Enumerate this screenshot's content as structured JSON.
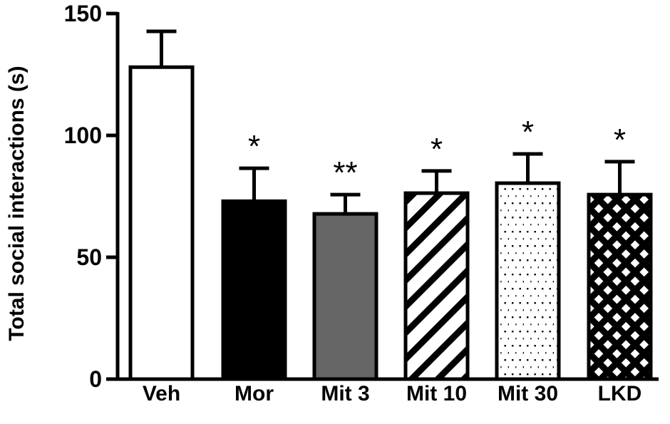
{
  "chart_data": {
    "type": "bar",
    "title": "",
    "xlabel": "",
    "ylabel": "Total social interactions (s)",
    "ylim": [
      0,
      150
    ],
    "yticks": [
      "0",
      "50",
      "100",
      "150"
    ],
    "grid": false,
    "categories": [
      "Veh",
      "Mor",
      "Mit 3",
      "Mit 10",
      "Mit 30",
      "LKD"
    ],
    "values": [
      128,
      73,
      67.8,
      76.3,
      80.4,
      75.7
    ],
    "error_upper": [
      142.7,
      86.5,
      75.7,
      85.4,
      92.4,
      89.2
    ],
    "significance": [
      "",
      "*",
      "**",
      "*",
      "*",
      "*"
    ],
    "fills": [
      "white",
      "black",
      "gray",
      "diagonal-stripes",
      "dots",
      "crosshatch"
    ],
    "colors": {
      "gray": "#666666",
      "black": "#000000"
    }
  }
}
